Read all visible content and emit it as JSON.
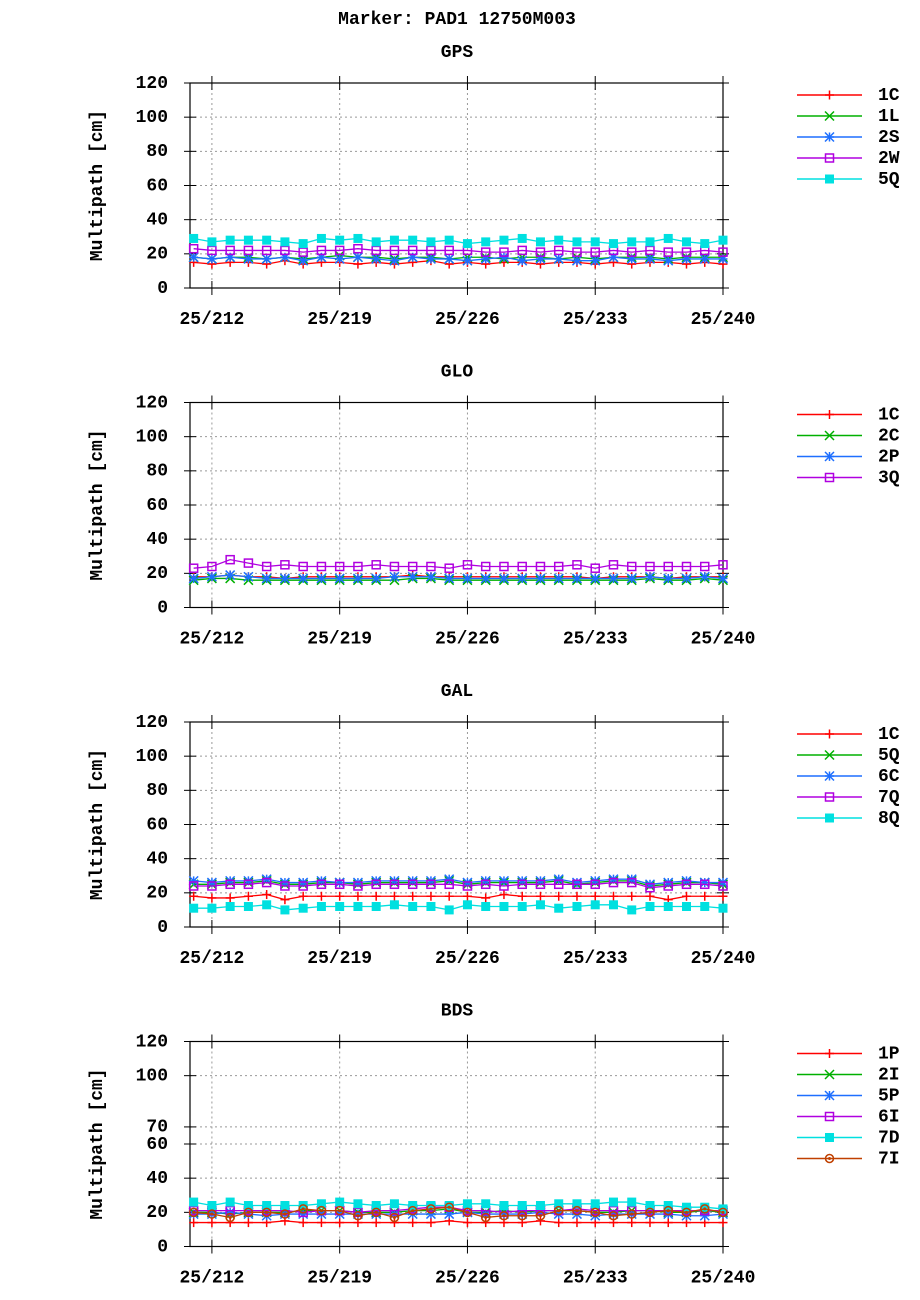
{
  "title": "Marker: PAD1 12750M003",
  "chart_data": [
    {
      "type": "line",
      "title": "GPS",
      "y_label": "Multipath [cm]",
      "grid": true,
      "legend": "right",
      "x": [
        211,
        212,
        213,
        214,
        215,
        216,
        217,
        218,
        219,
        220,
        221,
        222,
        223,
        224,
        225,
        226,
        227,
        228,
        229,
        230,
        231,
        232,
        233,
        234,
        235,
        236,
        237,
        238,
        239,
        240
      ],
      "xlim": [
        210.8,
        240
      ],
      "ylim": [
        0,
        120
      ],
      "yticks": [
        0,
        20,
        40,
        60,
        80,
        100,
        120
      ],
      "xticks": [
        {
          "value": 212,
          "label": "25/212"
        },
        {
          "value": 219,
          "label": "25/219"
        },
        {
          "value": 226,
          "label": "25/226"
        },
        {
          "value": 233,
          "label": "25/233"
        },
        {
          "value": 240,
          "label": "25/240"
        }
      ],
      "series": [
        {
          "name": "1C",
          "color": "#ff0000",
          "marker": "plus",
          "values": [
            15,
            14,
            15,
            15,
            14,
            16,
            14,
            15,
            15,
            14,
            15,
            14,
            15,
            16,
            14,
            15,
            14,
            15,
            15,
            14,
            15,
            15,
            14,
            15,
            14,
            15,
            15,
            14,
            15,
            14
          ]
        },
        {
          "name": "1L",
          "color": "#00b000",
          "marker": "cross",
          "values": [
            18,
            17,
            18,
            18,
            17,
            18,
            17,
            18,
            19,
            18,
            18,
            17,
            18,
            18,
            17,
            18,
            18,
            17,
            18,
            18,
            17,
            18,
            17,
            18,
            18,
            18,
            17,
            18,
            18,
            18
          ]
        },
        {
          "name": "2S",
          "color": "#1e6fff",
          "marker": "star",
          "values": [
            18,
            17,
            18,
            17,
            17,
            18,
            16,
            18,
            17,
            18,
            17,
            16,
            18,
            17,
            17,
            16,
            17,
            18,
            16,
            17,
            17,
            16,
            16,
            18,
            17,
            17,
            16,
            17,
            17,
            17
          ]
        },
        {
          "name": "2W",
          "color": "#b000e0",
          "marker": "square-open",
          "values": [
            23,
            22,
            22,
            22,
            22,
            22,
            21,
            22,
            22,
            23,
            22,
            22,
            22,
            22,
            22,
            22,
            21,
            21,
            22,
            21,
            22,
            21,
            21,
            22,
            21,
            22,
            21,
            21,
            22,
            21
          ]
        },
        {
          "name": "5Q",
          "color": "#00e0e0",
          "marker": "square-filled",
          "values": [
            29,
            27,
            28,
            28,
            28,
            27,
            26,
            29,
            28,
            29,
            27,
            28,
            28,
            27,
            28,
            26,
            27,
            28,
            29,
            27,
            28,
            27,
            27,
            26,
            27,
            27,
            29,
            27,
            26,
            28
          ]
        }
      ]
    },
    {
      "type": "line",
      "title": "GLO",
      "y_label": "Multipath [cm]",
      "grid": true,
      "legend": "right",
      "x": [
        211,
        212,
        213,
        214,
        215,
        216,
        217,
        218,
        219,
        220,
        221,
        222,
        223,
        224,
        225,
        226,
        227,
        228,
        229,
        230,
        231,
        232,
        233,
        234,
        235,
        236,
        237,
        238,
        239,
        240
      ],
      "xlim": [
        210.8,
        240
      ],
      "ylim": [
        0,
        120
      ],
      "yticks": [
        0,
        20,
        40,
        60,
        80,
        100,
        120
      ],
      "xticks": [
        {
          "value": 212,
          "label": "25/212"
        },
        {
          "value": 219,
          "label": "25/219"
        },
        {
          "value": 226,
          "label": "25/226"
        },
        {
          "value": 233,
          "label": "25/233"
        },
        {
          "value": 240,
          "label": "25/240"
        }
      ],
      "series": [
        {
          "name": "1C",
          "color": "#ff0000",
          "marker": "plus",
          "values": [
            18,
            18,
            19,
            18,
            18,
            17,
            18,
            18,
            18,
            18,
            18,
            18,
            19,
            18,
            18,
            18,
            18,
            18,
            18,
            18,
            18,
            18,
            17,
            18,
            18,
            18,
            17,
            18,
            18,
            18
          ]
        },
        {
          "name": "2C",
          "color": "#00b000",
          "marker": "cross",
          "values": [
            16,
            17,
            17,
            16,
            16,
            16,
            16,
            16,
            16,
            16,
            16,
            16,
            17,
            17,
            16,
            16,
            16,
            16,
            16,
            16,
            16,
            16,
            16,
            16,
            16,
            17,
            16,
            16,
            17,
            16
          ]
        },
        {
          "name": "2P",
          "color": "#1e6fff",
          "marker": "star",
          "values": [
            17,
            18,
            19,
            18,
            17,
            17,
            17,
            17,
            17,
            17,
            17,
            18,
            18,
            18,
            17,
            17,
            17,
            17,
            17,
            17,
            17,
            17,
            17,
            17,
            17,
            18,
            17,
            17,
            18,
            17
          ]
        },
        {
          "name": "3Q",
          "color": "#b000e0",
          "marker": "square-open",
          "values": [
            23,
            24,
            28,
            26,
            24,
            25,
            24,
            24,
            24,
            24,
            25,
            24,
            24,
            24,
            23,
            25,
            24,
            24,
            24,
            24,
            24,
            25,
            23,
            25,
            24,
            24,
            24,
            24,
            24,
            25
          ]
        }
      ]
    },
    {
      "type": "line",
      "title": "GAL",
      "y_label": "Multipath [cm]",
      "grid": true,
      "legend": "right",
      "x": [
        211,
        212,
        213,
        214,
        215,
        216,
        217,
        218,
        219,
        220,
        221,
        222,
        223,
        224,
        225,
        226,
        227,
        228,
        229,
        230,
        231,
        232,
        233,
        234,
        235,
        236,
        237,
        238,
        239,
        240
      ],
      "xlim": [
        210.8,
        240
      ],
      "ylim": [
        0,
        120
      ],
      "yticks": [
        0,
        20,
        40,
        60,
        80,
        100,
        120
      ],
      "xticks": [
        {
          "value": 212,
          "label": "25/212"
        },
        {
          "value": 219,
          "label": "25/219"
        },
        {
          "value": 226,
          "label": "25/226"
        },
        {
          "value": 233,
          "label": "25/233"
        },
        {
          "value": 240,
          "label": "25/240"
        }
      ],
      "series": [
        {
          "name": "1C",
          "color": "#ff0000",
          "marker": "plus",
          "values": [
            18,
            17,
            17,
            18,
            19,
            16,
            18,
            18,
            18,
            18,
            18,
            18,
            18,
            18,
            18,
            18,
            17,
            19,
            18,
            18,
            18,
            18,
            18,
            18,
            18,
            18,
            16,
            18,
            18,
            18
          ]
        },
        {
          "name": "5Q",
          "color": "#00b000",
          "marker": "cross",
          "values": [
            25,
            25,
            26,
            26,
            27,
            25,
            25,
            26,
            26,
            25,
            26,
            26,
            26,
            26,
            27,
            25,
            26,
            26,
            26,
            26,
            27,
            25,
            26,
            27,
            27,
            24,
            25,
            26,
            26,
            25
          ]
        },
        {
          "name": "6C",
          "color": "#1e6fff",
          "marker": "star",
          "values": [
            27,
            26,
            27,
            27,
            28,
            26,
            26,
            27,
            26,
            26,
            27,
            27,
            27,
            27,
            28,
            26,
            27,
            27,
            27,
            27,
            28,
            26,
            27,
            28,
            28,
            25,
            26,
            27,
            26,
            26
          ]
        },
        {
          "name": "7Q",
          "color": "#b000e0",
          "marker": "square-open",
          "values": [
            24,
            24,
            25,
            25,
            26,
            24,
            24,
            25,
            25,
            24,
            25,
            25,
            25,
            25,
            25,
            24,
            25,
            24,
            25,
            25,
            25,
            25,
            25,
            26,
            26,
            23,
            24,
            25,
            25,
            24
          ]
        },
        {
          "name": "8Q",
          "color": "#00e0e0",
          "marker": "square-filled",
          "values": [
            11,
            11,
            12,
            12,
            13,
            10,
            11,
            12,
            12,
            12,
            12,
            13,
            12,
            12,
            10,
            13,
            12,
            12,
            12,
            13,
            11,
            12,
            13,
            13,
            10,
            12,
            12,
            12,
            12,
            11
          ]
        }
      ]
    },
    {
      "type": "line",
      "title": "BDS",
      "y_label": "Multipath [cm]",
      "grid": true,
      "legend": "right",
      "x": [
        211,
        212,
        213,
        214,
        215,
        216,
        217,
        218,
        219,
        220,
        221,
        222,
        223,
        224,
        225,
        226,
        227,
        228,
        229,
        230,
        231,
        232,
        233,
        234,
        235,
        236,
        237,
        238,
        239,
        240
      ],
      "xlim": [
        210.8,
        240
      ],
      "ylim": [
        0,
        120
      ],
      "yticks": [
        0,
        20,
        40,
        60,
        70,
        100,
        120
      ],
      "xticks": [
        {
          "value": 212,
          "label": "25/212"
        },
        {
          "value": 219,
          "label": "25/219"
        },
        {
          "value": 226,
          "label": "25/226"
        },
        {
          "value": 233,
          "label": "25/233"
        },
        {
          "value": 240,
          "label": "25/240"
        }
      ],
      "series": [
        {
          "name": "1P",
          "color": "#ff0000",
          "marker": "plus",
          "values": [
            14,
            14,
            14,
            14,
            14,
            15,
            14,
            14,
            14,
            14,
            14,
            14,
            14,
            14,
            15,
            14,
            14,
            14,
            14,
            15,
            14,
            14,
            14,
            14,
            14,
            14,
            14,
            14,
            14,
            14
          ]
        },
        {
          "name": "2I",
          "color": "#00b000",
          "marker": "cross",
          "values": [
            20,
            20,
            19,
            20,
            20,
            20,
            21,
            21,
            21,
            20,
            20,
            20,
            21,
            21,
            22,
            20,
            20,
            21,
            20,
            21,
            21,
            21,
            20,
            20,
            21,
            21,
            20,
            20,
            21,
            20
          ]
        },
        {
          "name": "5P",
          "color": "#1e6fff",
          "marker": "star",
          "values": [
            19,
            19,
            20,
            19,
            18,
            19,
            19,
            19,
            19,
            19,
            19,
            19,
            19,
            19,
            19,
            20,
            19,
            19,
            19,
            20,
            19,
            19,
            18,
            19,
            19,
            19,
            19,
            18,
            18,
            19
          ]
        },
        {
          "name": "6I",
          "color": "#b000e0",
          "marker": "square-open",
          "values": [
            21,
            21,
            21,
            21,
            21,
            21,
            20,
            21,
            21,
            20,
            21,
            21,
            22,
            23,
            23,
            21,
            21,
            20,
            21,
            21,
            21,
            22,
            21,
            21,
            21,
            21,
            21,
            21,
            21,
            21
          ]
        },
        {
          "name": "7D",
          "color": "#00e0e0",
          "marker": "square-filled",
          "values": [
            26,
            24,
            26,
            24,
            24,
            24,
            24,
            25,
            26,
            25,
            24,
            25,
            24,
            24,
            24,
            25,
            25,
            24,
            24,
            24,
            25,
            25,
            25,
            26,
            26,
            24,
            24,
            23,
            23,
            22
          ]
        },
        {
          "name": "7I",
          "color": "#c04000",
          "marker": "circle",
          "values": [
            20,
            19,
            17,
            20,
            20,
            19,
            22,
            21,
            21,
            18,
            20,
            17,
            21,
            22,
            23,
            20,
            17,
            18,
            18,
            18,
            21,
            21,
            20,
            18,
            19,
            20,
            21,
            20,
            22,
            20
          ]
        }
      ]
    }
  ]
}
